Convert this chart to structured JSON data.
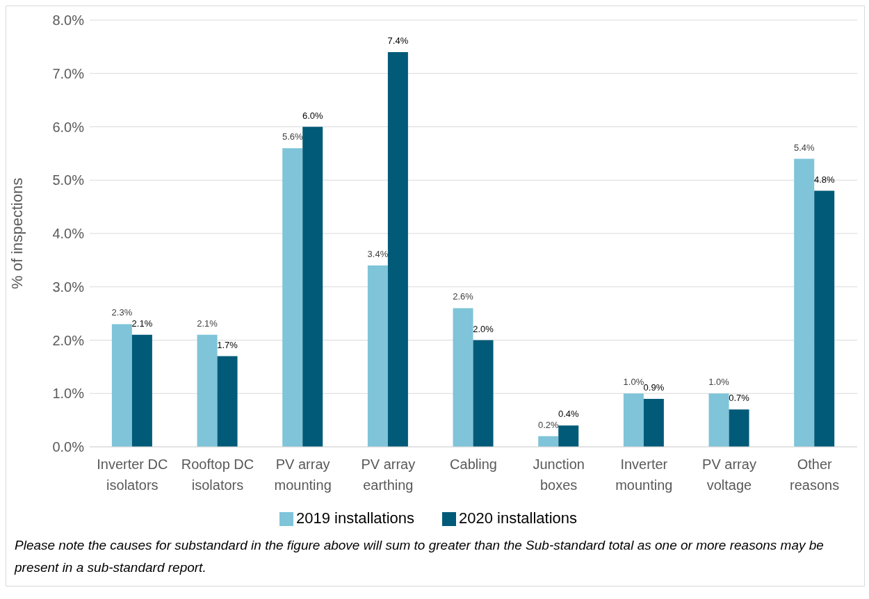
{
  "chart_data": {
    "type": "bar",
    "ylabel": "% of inspections",
    "categories": [
      "Inverter DC isolators",
      "Rooftop DC isolators",
      "PV array mounting",
      "PV array earthing",
      "Cabling",
      "Junction boxes",
      "Inverter mounting",
      "PV array voltage",
      "Other reasons"
    ],
    "series": [
      {
        "name": "2019 installations",
        "color": "#7fc4d8",
        "values": [
          2.3,
          2.1,
          5.6,
          3.4,
          2.6,
          0.2,
          1.0,
          1.0,
          5.4
        ],
        "value_labels": [
          "2.3%",
          "2.1%",
          "5.6%",
          "3.4%",
          "2.6%",
          "0.2%",
          "1.0%",
          "1.0%",
          "5.4%"
        ]
      },
      {
        "name": "2020 installations",
        "color": "#005a78",
        "values": [
          2.1,
          1.7,
          6.0,
          7.4,
          2.0,
          0.4,
          0.9,
          0.7,
          4.8
        ],
        "value_labels": [
          "2.1%",
          "1.7%",
          "6.0%",
          "7.4%",
          "2.0%",
          "0.4%",
          "0.9%",
          "0.7%",
          "4.8%"
        ]
      }
    ],
    "ylim": [
      0,
      8
    ],
    "yticks": [
      {
        "value": 0,
        "label": "0.0%"
      },
      {
        "value": 1,
        "label": "1.0%"
      },
      {
        "value": 2,
        "label": "2.0%"
      },
      {
        "value": 3,
        "label": "3.0%"
      },
      {
        "value": 4,
        "label": "4.0%"
      },
      {
        "value": 5,
        "label": "5.0%"
      },
      {
        "value": 6,
        "label": "6.0%"
      },
      {
        "value": 7,
        "label": "7.0%"
      },
      {
        "value": 8,
        "label": "8.0%"
      }
    ],
    "grid": "y",
    "legend": "bottom",
    "annotations": [
      "Please note the causes for substandard in the figure above will sum to greater than the Sub-standard total as one or more reasons may be present in a sub-standard report."
    ]
  }
}
